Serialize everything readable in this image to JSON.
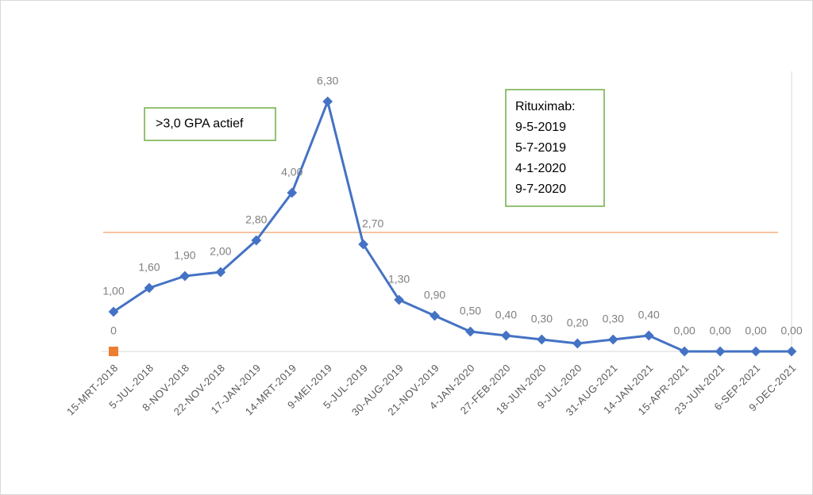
{
  "chart_data": {
    "type": "line",
    "categories": [
      "15-MRT-2018",
      "5-JUL-2018",
      "8-NOV-2018",
      "22-NOV-2018",
      "17-JAN-2019",
      "14-MRT-2019",
      "9-MEI-2019",
      "5-JUL-2019",
      "30-AUG-2019",
      "21-NOV-2019",
      "4-JAN-2020",
      "27-FEB-2020",
      "18-JUN-2020",
      "9-JUL-2020",
      "31-AUG-2021",
      "14-JAN-2021",
      "15-APR-2021",
      "23-JUN-2021",
      "6-SEP-2021",
      "9-DEC-2021"
    ],
    "series": [
      {
        "color": "#4472c4",
        "marker": "diamond",
        "values": [
          1.0,
          1.6,
          1.9,
          2.0,
          2.8,
          4.0,
          6.3,
          2.7,
          1.3,
          0.9,
          0.5,
          0.4,
          0.3,
          0.2,
          0.3,
          0.4,
          0.0,
          0.0,
          0.0,
          0.0
        ],
        "value_labels": [
          "1,00",
          "1,60",
          "1,90",
          "2,00",
          "2,80",
          "4,00",
          "6,30",
          "2,70",
          "1,30",
          "0,90",
          "0,50",
          "0,40",
          "0,30",
          "0,20",
          "0,30",
          "0,40",
          "0,00",
          "0,00",
          "0,00",
          "0,00"
        ]
      },
      {
        "color": "#ed7d31",
        "marker": "square",
        "values": [
          0,
          null,
          null,
          null,
          null,
          null,
          null,
          null,
          null,
          null,
          null,
          null,
          null,
          null,
          null,
          null,
          null,
          null,
          null,
          null
        ]
      }
    ],
    "hline": {
      "value": 3.0,
      "color": "#f4b183"
    },
    "ylim": [
      0,
      7
    ],
    "annotations": [
      {
        "text": ">3,0 GPA actief"
      },
      {
        "lines": [
          "Rituximab:",
          "9-5-2019",
          "5-7-2019",
          "4-1-2020",
          "9-7-2020"
        ]
      }
    ]
  }
}
